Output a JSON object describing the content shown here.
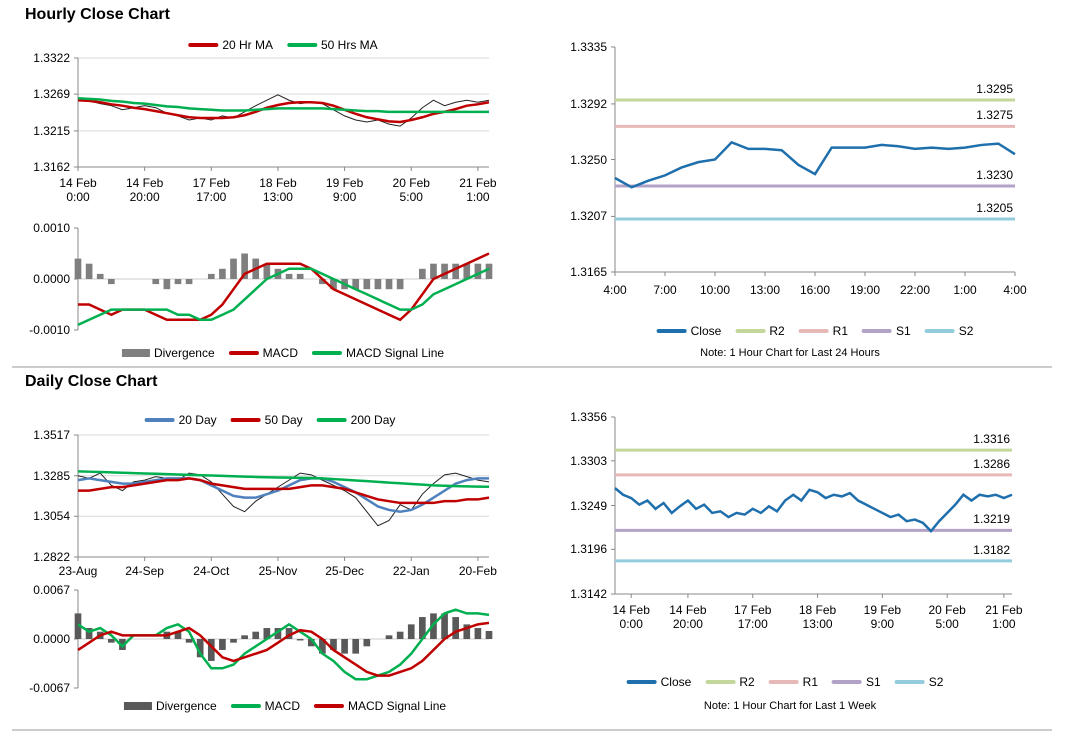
{
  "sections": [
    "Hourly Close Chart",
    "Daily Close Chart"
  ],
  "chart_data": [
    {
      "type": "line",
      "ylim": [
        1.3162,
        1.3322
      ],
      "yticks": [
        1.3162,
        1.3215,
        1.3269,
        1.3322
      ],
      "grid": true,
      "categories": [
        "14 Feb\n0:00",
        null,
        null,
        null,
        null,
        null,
        "14 Feb\n20:00",
        null,
        null,
        null,
        null,
        null,
        "17 Feb\n17:00",
        null,
        null,
        null,
        null,
        null,
        "18 Feb\n13:00",
        null,
        null,
        null,
        null,
        null,
        "19 Feb\n9:00",
        null,
        null,
        null,
        null,
        null,
        "20 Feb\n5:00",
        null,
        null,
        null,
        null,
        null,
        "21 Feb\n1:00",
        null
      ],
      "close_color": "#222222",
      "close_values": [
        1.3263,
        1.3259,
        1.3255,
        1.3252,
        1.3246,
        1.3249,
        1.3252,
        1.3249,
        1.3241,
        1.3237,
        1.3231,
        1.3234,
        1.3231,
        1.3237,
        1.3234,
        1.3243,
        1.3252,
        1.326,
        1.3268,
        1.326,
        1.3255,
        1.3257,
        1.3255,
        1.3246,
        1.3237,
        1.3231,
        1.3228,
        1.3231,
        1.3225,
        1.3222,
        1.3234,
        1.3249,
        1.326,
        1.3252,
        1.3257,
        1.326,
        1.3257,
        1.326
      ],
      "series": [
        {
          "name": "20 Hr MA",
          "color": "#c00000",
          "kind": "line",
          "values": [
            1.326,
            1.3259,
            1.3257,
            1.3254,
            1.3252,
            1.3249,
            1.3247,
            1.3244,
            1.3241,
            1.3238,
            1.3235,
            1.3234,
            1.3234,
            1.3234,
            1.3235,
            1.3238,
            1.3243,
            1.3249,
            1.3253,
            1.3256,
            1.3257,
            1.3257,
            1.3256,
            1.3252,
            1.3246,
            1.324,
            1.3235,
            1.3232,
            1.3229,
            1.3228,
            1.3231,
            1.3235,
            1.324,
            1.3243,
            1.3247,
            1.3252,
            1.3254,
            1.3257
          ]
        },
        {
          "name": "50 Hrs MA",
          "color": "#00b050",
          "kind": "line",
          "values": [
            1.3263,
            1.3262,
            1.3261,
            1.3259,
            1.3258,
            1.3256,
            1.3255,
            1.3253,
            1.3251,
            1.325,
            1.3248,
            1.3247,
            1.3246,
            1.3245,
            1.3245,
            1.3245,
            1.3246,
            1.3247,
            1.3248,
            1.3248,
            1.3248,
            1.3248,
            1.3248,
            1.3247,
            1.3246,
            1.3245,
            1.3244,
            1.3244,
            1.3243,
            1.3243,
            1.3243,
            1.3243,
            1.3243,
            1.3243,
            1.3243,
            1.3243,
            1.3243,
            1.3243
          ]
        }
      ]
    },
    {
      "type": "combo",
      "ylim": [
        -0.001,
        0.001
      ],
      "yticks": [
        {
          "value": -0.001,
          "label": "-0.0010"
        },
        {
          "value": 0,
          "label": "0.0000"
        },
        {
          "value": 0.001,
          "label": "0.0010"
        }
      ],
      "grid": false,
      "series": [
        {
          "name": "Divergence",
          "color": "#7f7f7f",
          "kind": "bar",
          "values": [
            0.0004,
            0.0003,
            0.0001,
            -0.0001,
            0,
            0,
            0,
            -0.0001,
            -0.0002,
            -0.0001,
            -0.0001,
            0,
            0.0001,
            0.0002,
            0.0004,
            0.0005,
            0.0004,
            0.0003,
            0.0002,
            0.0001,
            0.0001,
            0,
            -0.0001,
            -0.0002,
            -0.0002,
            -0.0002,
            -0.0002,
            -0.0002,
            -0.0002,
            -0.0002,
            0,
            0.0002,
            0.0003,
            0.0003,
            0.0003,
            0.0003,
            0.0003,
            0.0003
          ]
        },
        {
          "name": "MACD",
          "color": "#c00000",
          "kind": "line",
          "values": [
            -0.0005,
            -0.0005,
            -0.0006,
            -0.0007,
            -0.0006,
            -0.0006,
            -0.0006,
            -0.0007,
            -0.0008,
            -0.0008,
            -0.0008,
            -0.0008,
            -0.0007,
            -0.0005,
            -0.0002,
            0.0001,
            0.0002,
            0.0003,
            0.0003,
            0.0003,
            0.0003,
            0.0002,
            0,
            -0.0002,
            -0.0003,
            -0.0004,
            -0.0005,
            -0.0006,
            -0.0007,
            -0.0008,
            -0.0006,
            -0.0003,
            0,
            0.0001,
            0.0002,
            0.0003,
            0.0004,
            0.0005
          ]
        },
        {
          "name": "MACD Signal Line",
          "color": "#00b050",
          "kind": "line",
          "values": [
            -0.0009,
            -0.0008,
            -0.0007,
            -0.0006,
            -0.0006,
            -0.0006,
            -0.0006,
            -0.0006,
            -0.0006,
            -0.0007,
            -0.0007,
            -0.0008,
            -0.0008,
            -0.0007,
            -0.0006,
            -0.0004,
            -0.0002,
            0,
            0.0001,
            0.0002,
            0.0002,
            0.0002,
            0.0001,
            0,
            -0.0001,
            -0.0002,
            -0.0003,
            -0.0004,
            -0.0005,
            -0.0006,
            -0.0006,
            -0.0005,
            -0.0003,
            -0.0002,
            -0.0001,
            0,
            0.0001,
            0.0002
          ]
        }
      ]
    },
    {
      "type": "line",
      "ylim": [
        1.3165,
        1.3335
      ],
      "yticks": [
        1.3165,
        1.3207,
        {
          "value": 1.325,
          "label": "1.3250"
        },
        1.3292,
        1.3335
      ],
      "grid": false,
      "categories": [
        "4:00",
        null,
        null,
        "7:00",
        null,
        null,
        "10:00",
        null,
        null,
        "13:00",
        null,
        null,
        "16:00",
        null,
        null,
        "19:00",
        null,
        null,
        "22:00",
        null,
        null,
        "1:00",
        null,
        null,
        "4:00"
      ],
      "series": [
        {
          "name": "Close",
          "color": "#1f6fad",
          "kind": "line",
          "values": [
            1.3236,
            1.3229,
            1.3234,
            1.3238,
            1.3244,
            1.3248,
            1.325,
            1.3263,
            1.3258,
            1.3258,
            1.3257,
            1.3246,
            1.3239,
            1.3259,
            1.3259,
            1.3259,
            1.3261,
            1.326,
            1.3258,
            1.3259,
            1.3258,
            1.3259,
            1.3261,
            1.3262,
            1.3254
          ]
        }
      ],
      "levels": [
        {
          "name": "R2",
          "color": "#c3d69b",
          "value": 1.3295,
          "label": "1.3295"
        },
        {
          "name": "R1",
          "color": "#e6b9b8",
          "value": 1.3275,
          "label": "1.3275"
        },
        {
          "name": "S1",
          "color": "#b3a2c7",
          "value": 1.323,
          "label": "1.3230"
        },
        {
          "name": "S2",
          "color": "#93cddd",
          "value": 1.3205,
          "label": "1.3205"
        }
      ],
      "note": "Note: 1 Hour Chart for Last 24 Hours"
    },
    {
      "type": "line",
      "ylim": [
        1.2822,
        1.3517
      ],
      "yticks": [
        1.2822,
        1.3054,
        1.3285,
        1.3517
      ],
      "grid": true,
      "categories": [
        "23-Aug",
        null,
        null,
        null,
        null,
        null,
        "24-Sep",
        null,
        null,
        null,
        null,
        null,
        "24-Oct",
        null,
        null,
        null,
        null,
        null,
        "25-Nov",
        null,
        null,
        null,
        null,
        null,
        "25-Dec",
        null,
        null,
        null,
        null,
        null,
        "22-Jan",
        null,
        null,
        null,
        null,
        null,
        "20-Feb",
        null
      ],
      "close_color": "#222222",
      "close_values": [
        1.3285,
        1.327,
        1.33,
        1.323,
        1.32,
        1.325,
        1.326,
        1.328,
        1.327,
        1.326,
        1.33,
        1.329,
        1.325,
        1.318,
        1.311,
        1.308,
        1.314,
        1.318,
        1.322,
        1.326,
        1.33,
        1.329,
        1.326,
        1.323,
        1.32,
        1.316,
        1.308,
        1.3,
        1.303,
        1.312,
        1.309,
        1.318,
        1.324,
        1.329,
        1.33,
        1.328,
        1.326,
        1.325
      ],
      "series": [
        {
          "name": "20 Day",
          "color": "#4f81bd",
          "kind": "line",
          "values": [
            1.326,
            1.327,
            1.326,
            1.325,
            1.324,
            1.324,
            1.325,
            1.326,
            1.327,
            1.327,
            1.327,
            1.326,
            1.323,
            1.32,
            1.317,
            1.316,
            1.316,
            1.318,
            1.32,
            1.323,
            1.326,
            1.327,
            1.327,
            1.325,
            1.322,
            1.319,
            1.315,
            1.311,
            1.309,
            1.308,
            1.309,
            1.312,
            1.316,
            1.32,
            1.324,
            1.326,
            1.327,
            1.327
          ]
        },
        {
          "name": "50 Day",
          "color": "#c00000",
          "kind": "line",
          "values": [
            1.32,
            1.32,
            1.321,
            1.322,
            1.322,
            1.323,
            1.324,
            1.325,
            1.326,
            1.326,
            1.327,
            1.326,
            1.324,
            1.323,
            1.322,
            1.321,
            1.321,
            1.321,
            1.321,
            1.321,
            1.322,
            1.323,
            1.323,
            1.322,
            1.321,
            1.319,
            1.317,
            1.315,
            1.314,
            1.313,
            1.313,
            1.313,
            1.313,
            1.314,
            1.314,
            1.315,
            1.315,
            1.316
          ]
        },
        {
          "name": "200 Day",
          "color": "#00b050",
          "kind": "line",
          "values": [
            1.331,
            1.3308,
            1.3306,
            1.3304,
            1.3302,
            1.33,
            1.3298,
            1.3296,
            1.3294,
            1.3292,
            1.329,
            1.3288,
            1.3286,
            1.3284,
            1.3282,
            1.328,
            1.3278,
            1.3276,
            1.3275,
            1.3274,
            1.3273,
            1.3272,
            1.327,
            1.3266,
            1.3262,
            1.3258,
            1.3254,
            1.325,
            1.3246,
            1.3242,
            1.3238,
            1.3234,
            1.323,
            1.3228,
            1.3226,
            1.3224,
            1.3223,
            1.3222
          ]
        }
      ]
    },
    {
      "type": "combo",
      "ylim": [
        -0.0067,
        0.0067
      ],
      "yticks": [
        -0.0067,
        {
          "value": 0,
          "label": "0.0000"
        },
        0.0067
      ],
      "grid": false,
      "series": [
        {
          "name": "Divergence",
          "color": "#595959",
          "kind": "bar",
          "values": [
            0.0035,
            0.0015,
            0.001,
            -0.0005,
            -0.0015,
            0,
            0,
            0,
            0.001,
            0.001,
            -0.0005,
            -0.0025,
            -0.003,
            -0.0015,
            -0.0005,
            0.0005,
            0.001,
            0.0015,
            0.0015,
            0.0015,
            -0.0002,
            -0.001,
            -0.002,
            -0.0015,
            -0.002,
            -0.002,
            -0.001,
            0,
            0.0005,
            0.001,
            0.002,
            0.003,
            0.0035,
            0.0035,
            0.003,
            0.002,
            0.0015,
            0.0011
          ]
        },
        {
          "name": "MACD",
          "color": "#00b050",
          "kind": "line",
          "values": [
            0.002,
            0.001,
            0.0015,
            0.0005,
            -0.001,
            0.0005,
            0.0005,
            0.0005,
            0.0015,
            0.002,
            0.001,
            -0.002,
            -0.004,
            -0.004,
            -0.0035,
            -0.002,
            -0.001,
            0,
            0.001,
            0.002,
            0.001,
            0,
            -0.002,
            -0.003,
            -0.0045,
            -0.0055,
            -0.0055,
            -0.005,
            -0.0045,
            -0.0035,
            -0.002,
            0,
            0.002,
            0.0035,
            0.004,
            0.0035,
            0.0035,
            0.0033
          ]
        },
        {
          "name": "MACD Signal Line",
          "color": "#c00000",
          "kind": "line",
          "values": [
            -0.0015,
            -0.0005,
            0.0005,
            0.001,
            0.0005,
            0.0005,
            0.0005,
            0.0005,
            0.0005,
            0.001,
            0.0015,
            0.0005,
            -0.001,
            -0.0025,
            -0.003,
            -0.0025,
            -0.002,
            -0.0015,
            -0.0005,
            0.0005,
            0.0012,
            0.001,
            0,
            -0.0015,
            -0.0025,
            -0.0035,
            -0.0045,
            -0.005,
            -0.005,
            -0.0045,
            -0.004,
            -0.003,
            -0.0015,
            0,
            0.001,
            0.0015,
            0.002,
            0.0022
          ]
        }
      ]
    },
    {
      "type": "line",
      "ylim": [
        1.3142,
        1.3356
      ],
      "yticks": [
        1.3142,
        1.3196,
        1.3249,
        1.3303,
        1.3356
      ],
      "grid": false,
      "categories": [
        null,
        null,
        "14 Feb\n0:00",
        null,
        null,
        null,
        null,
        null,
        null,
        "14 Feb\n20:00",
        null,
        null,
        null,
        null,
        null,
        null,
        null,
        "17 Feb\n17:00",
        null,
        null,
        null,
        null,
        null,
        null,
        null,
        "18 Feb\n13:00",
        null,
        null,
        null,
        null,
        null,
        null,
        null,
        "19 Feb\n9:00",
        null,
        null,
        null,
        null,
        null,
        null,
        null,
        "20 Feb\n5:00",
        null,
        null,
        null,
        null,
        null,
        null,
        "21 Feb\n1:00",
        null
      ],
      "series": [
        {
          "name": "Close",
          "color": "#1f6fad",
          "kind": "line",
          "values": [
            1.327,
            1.3262,
            1.3258,
            1.325,
            1.3255,
            1.3245,
            1.3252,
            1.324,
            1.3248,
            1.3255,
            1.3245,
            1.325,
            1.324,
            1.3242,
            1.3235,
            1.324,
            1.3238,
            1.3245,
            1.324,
            1.3248,
            1.3242,
            1.3255,
            1.3262,
            1.3255,
            1.3268,
            1.3265,
            1.3258,
            1.3262,
            1.326,
            1.3264,
            1.3255,
            1.325,
            1.3245,
            1.324,
            1.3235,
            1.3238,
            1.323,
            1.3232,
            1.3228,
            1.3218,
            1.323,
            1.324,
            1.325,
            1.3262,
            1.3255,
            1.3262,
            1.326,
            1.3262,
            1.3258,
            1.3262
          ]
        }
      ],
      "levels": [
        {
          "name": "R2",
          "color": "#c3d69b",
          "value": 1.3316,
          "label": "1.3316"
        },
        {
          "name": "R1",
          "color": "#e6b9b8",
          "value": 1.3286,
          "label": "1.3286"
        },
        {
          "name": "S1",
          "color": "#b3a2c7",
          "value": 1.3219,
          "label": "1.3219"
        },
        {
          "name": "S2",
          "color": "#93cddd",
          "value": 1.3182,
          "label": "1.3182"
        }
      ],
      "note": "Note: 1 Hour Chart for Last 1 Week"
    }
  ]
}
